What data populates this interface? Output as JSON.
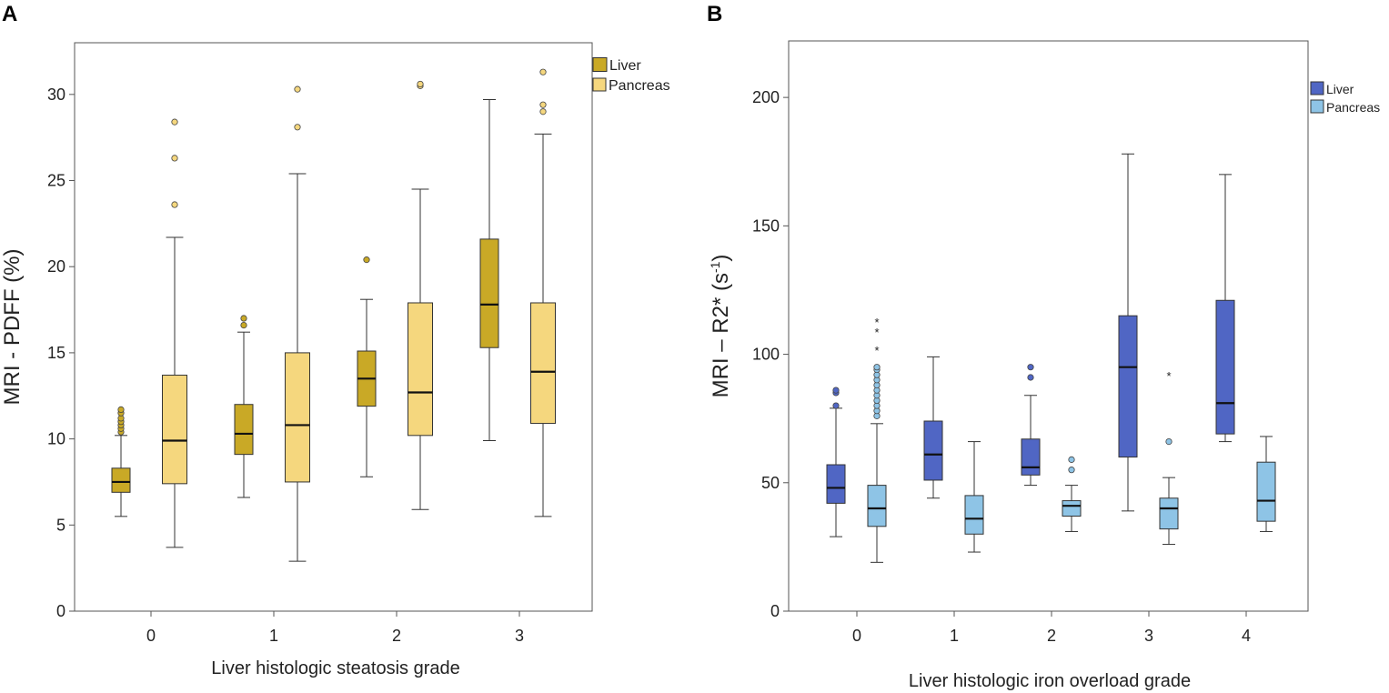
{
  "chart_data": [
    {
      "panel": "A",
      "type": "box",
      "title": "",
      "xlabel": "Liver histologic steatosis grade",
      "ylabel": "MRI - PDFF (%)",
      "ylim": [
        0,
        33
      ],
      "yticks": [
        0,
        5,
        10,
        15,
        20,
        25,
        30
      ],
      "categories": [
        "0",
        "1",
        "2",
        "3"
      ],
      "legend": {
        "position": "top-right"
      },
      "series": [
        {
          "name": "Liver",
          "color": "#c9a926",
          "boxes": [
            {
              "category": "0",
              "whisker_low": 5.5,
              "q1": 6.9,
              "median": 7.5,
              "q3": 8.3,
              "whisker_high": 10.2,
              "outliers": [
                10.4,
                10.6,
                10.8,
                11.0,
                11.2,
                11.5,
                11.7
              ]
            },
            {
              "category": "1",
              "whisker_low": 6.6,
              "q1": 9.1,
              "median": 10.3,
              "q3": 12.0,
              "whisker_high": 16.2,
              "outliers": [
                16.6,
                17.0
              ]
            },
            {
              "category": "2",
              "whisker_low": 7.8,
              "q1": 11.9,
              "median": 13.5,
              "q3": 15.1,
              "whisker_high": 18.1,
              "outliers": [
                20.4
              ]
            },
            {
              "category": "3",
              "whisker_low": 9.9,
              "q1": 15.3,
              "median": 17.8,
              "q3": 21.6,
              "whisker_high": 29.7,
              "outliers": []
            }
          ]
        },
        {
          "name": "Pancreas",
          "color": "#f5d77e",
          "boxes": [
            {
              "category": "0",
              "whisker_low": 3.7,
              "q1": 7.4,
              "median": 9.9,
              "q3": 13.7,
              "whisker_high": 21.7,
              "outliers": [
                23.6,
                26.3,
                28.4
              ]
            },
            {
              "category": "1",
              "whisker_low": 2.9,
              "q1": 7.5,
              "median": 10.8,
              "q3": 15.0,
              "whisker_high": 25.4,
              "outliers": [
                28.1,
                30.3
              ]
            },
            {
              "category": "2",
              "whisker_low": 5.9,
              "q1": 10.2,
              "median": 12.7,
              "q3": 17.9,
              "whisker_high": 24.5,
              "outliers": [
                30.5,
                30.6
              ]
            },
            {
              "category": "3",
              "whisker_low": 5.5,
              "q1": 10.9,
              "median": 13.9,
              "q3": 17.9,
              "whisker_high": 27.7,
              "outliers": [
                29.0,
                29.4,
                31.3
              ]
            }
          ]
        }
      ]
    },
    {
      "panel": "B",
      "type": "box",
      "title": "",
      "xlabel": "Liver histologic iron overload grade",
      "ylabel_main": "MRI – R2* (s",
      "ylabel_sup": "-1",
      "ylabel_end": ")",
      "ylim": [
        0,
        222
      ],
      "yticks": [
        0,
        50,
        100,
        150,
        200
      ],
      "categories": [
        "0",
        "1",
        "2",
        "3",
        "4"
      ],
      "legend": {
        "position": "top-right"
      },
      "series": [
        {
          "name": "Liver",
          "color": "#5066c4",
          "boxes": [
            {
              "category": "0",
              "whisker_low": 29,
              "q1": 42,
              "median": 48,
              "q3": 57,
              "whisker_high": 79,
              "outliers": [
                80,
                85,
                86
              ]
            },
            {
              "category": "1",
              "whisker_low": 44,
              "q1": 51,
              "median": 61,
              "q3": 74,
              "whisker_high": 99,
              "outliers": []
            },
            {
              "category": "2",
              "whisker_low": 49,
              "q1": 53,
              "median": 56,
              "q3": 67,
              "whisker_high": 84,
              "outliers": [
                91,
                95
              ]
            },
            {
              "category": "3",
              "whisker_low": 39,
              "q1": 60,
              "median": 95,
              "q3": 115,
              "whisker_high": 178,
              "outliers": []
            },
            {
              "category": "4",
              "whisker_low": 66,
              "q1": 69,
              "median": 81,
              "q3": 121,
              "whisker_high": 170,
              "outliers": []
            }
          ]
        },
        {
          "name": "Pancreas",
          "color": "#8ec4e6",
          "boxes": [
            {
              "category": "0",
              "whisker_low": 19,
              "q1": 33,
              "median": 40,
              "q3": 49,
              "whisker_high": 73,
              "outliers": [
                76,
                78,
                80,
                82,
                84,
                86,
                88,
                90,
                92,
                94,
                95
              ],
              "extremes": [
                102,
                109,
                113
              ]
            },
            {
              "category": "1",
              "whisker_low": 23,
              "q1": 30,
              "median": 36,
              "q3": 45,
              "whisker_high": 66,
              "outliers": []
            },
            {
              "category": "2",
              "whisker_low": 31,
              "q1": 37,
              "median": 41,
              "q3": 43,
              "whisker_high": 49,
              "outliers": [
                55,
                59
              ]
            },
            {
              "category": "3",
              "whisker_low": 26,
              "q1": 32,
              "median": 40,
              "q3": 44,
              "whisker_high": 52,
              "outliers": [
                66
              ],
              "extremes": [
                92
              ]
            },
            {
              "category": "4",
              "whisker_low": 31,
              "q1": 35,
              "median": 43,
              "q3": 58,
              "whisker_high": 68,
              "outliers": []
            }
          ]
        }
      ]
    }
  ]
}
